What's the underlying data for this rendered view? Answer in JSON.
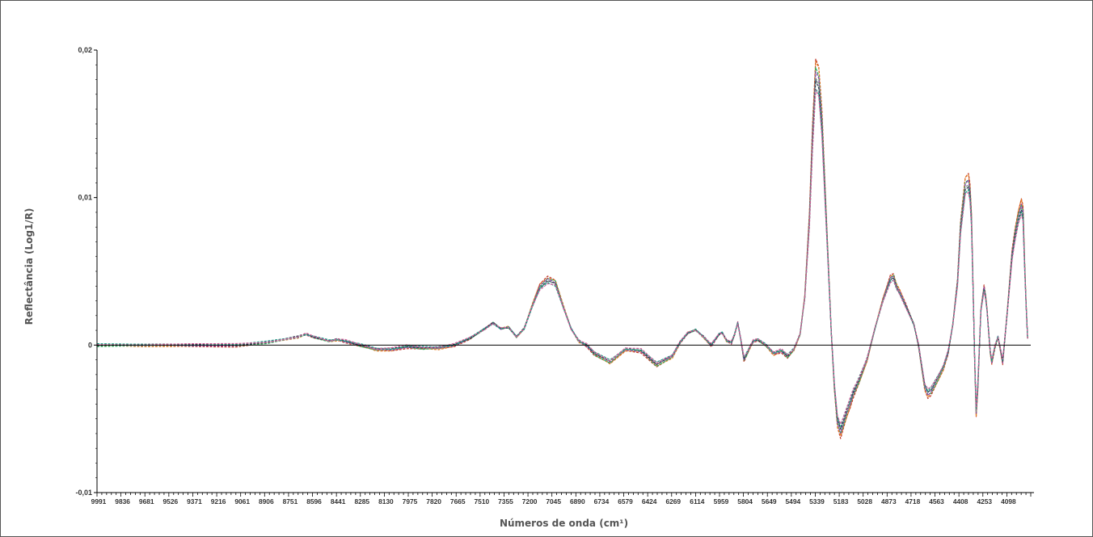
{
  "chart_data": {
    "type": "line",
    "title": "",
    "xlabel": "Números de onda (cm¹)",
    "ylabel": "Reflectância (Log1/R)",
    "x_ticks": [
      "9991",
      "9836",
      "9681",
      "9526",
      "9371",
      "9216",
      "9061",
      "8906",
      "8751",
      "8596",
      "8441",
      "8285",
      "8130",
      "7975",
      "7820",
      "7665",
      "7510",
      "7355",
      "7200",
      "7045",
      "6890",
      "6734",
      "6579",
      "6424",
      "6269",
      "6114",
      "5959",
      "5804",
      "5649",
      "5494",
      "5339",
      "5183",
      "5028",
      "4873",
      "4718",
      "4563",
      "4408",
      "4253",
      "4098"
    ],
    "y_ticks": [
      "0,02",
      "0,01",
      "0",
      "-0,01"
    ],
    "y_tick_values": [
      0.02,
      0.01,
      0,
      -0.01
    ],
    "xlim": [
      9991,
      4000
    ],
    "ylim": [
      -0.01,
      0.02
    ],
    "x_reversed": true,
    "grid": false,
    "zero_line": true,
    "n_spectra": 8,
    "series_colors": [
      "#c0392b",
      "#e67e22",
      "#27ae60",
      "#8e44ad",
      "#7f8c8d",
      "#2c3e50",
      "#16a085",
      "#d35f9a"
    ],
    "x": [
      9991,
      9700,
      9400,
      9100,
      8900,
      8700,
      8650,
      8600,
      8500,
      8450,
      8400,
      8300,
      8200,
      8100,
      8000,
      7900,
      7800,
      7700,
      7600,
      7500,
      7450,
      7400,
      7350,
      7300,
      7250,
      7200,
      7150,
      7100,
      7050,
      7000,
      6950,
      6900,
      6850,
      6800,
      6700,
      6600,
      6500,
      6400,
      6300,
      6250,
      6200,
      6150,
      6100,
      6050,
      6000,
      5980,
      5950,
      5920,
      5900,
      5880,
      5860,
      5840,
      5820,
      5800,
      5780,
      5750,
      5700,
      5650,
      5600,
      5560,
      5520,
      5480,
      5450,
      5420,
      5400,
      5380,
      5360,
      5340,
      5320,
      5300,
      5280,
      5260,
      5240,
      5220,
      5200,
      5180,
      5160,
      5140,
      5100,
      5050,
      5000,
      4950,
      4900,
      4880,
      4860,
      4840,
      4800,
      4750,
      4720,
      4700,
      4680,
      4660,
      4640,
      4600,
      4560,
      4530,
      4500,
      4470,
      4450,
      4420,
      4400,
      4390,
      4380,
      4370,
      4360,
      4350,
      4340,
      4320,
      4300,
      4290,
      4280,
      4270,
      4260,
      4250,
      4230,
      4210,
      4200,
      4180,
      4150,
      4120,
      4100,
      4080,
      4060,
      4050,
      4040,
      4030,
      4020
    ],
    "series": [
      {
        "values": [
          0,
          0,
          0,
          0,
          0.0002,
          0.0006,
          0.0008,
          0.0006,
          0.0003,
          0.0004,
          0.0003,
          0,
          -0.0003,
          -0.0003,
          -0.0001,
          -0.0002,
          -0.0002,
          0,
          0.0005,
          0.0012,
          0.0016,
          0.0012,
          0.0013,
          0.0006,
          0.0012,
          0.0028,
          0.0042,
          0.0047,
          0.0045,
          0.0028,
          0.0012,
          0.0003,
          0,
          -0.0006,
          -0.0012,
          -0.0003,
          -0.0004,
          -0.0014,
          -0.0008,
          0.0002,
          0.0009,
          0.0011,
          0.0006,
          0,
          0.0008,
          0.0009,
          0.0003,
          0.0002,
          0.0008,
          0.0016,
          0.0004,
          -0.001,
          -0.0006,
          -0.0001,
          0.0003,
          0.0004,
          0,
          -0.0006,
          -0.0004,
          -0.0008,
          -0.0003,
          0.0008,
          0.0035,
          0.009,
          0.015,
          0.0195,
          0.019,
          0.016,
          0.011,
          0.006,
          0.001,
          -0.003,
          -0.0055,
          -0.0062,
          -0.0055,
          -0.0048,
          -0.0042,
          -0.0035,
          -0.0025,
          -0.001,
          0.0012,
          0.0032,
          0.0048,
          0.0049,
          0.0042,
          0.0038,
          0.0028,
          0.0015,
          0,
          -0.0015,
          -0.003,
          -0.0035,
          -0.0033,
          -0.0025,
          -0.0016,
          -0.0005,
          0.0015,
          0.0045,
          0.0085,
          0.0115,
          0.0117,
          0.011,
          0.009,
          0.004,
          -0.001,
          -0.0048,
          -0.003,
          0.0025,
          0.0041,
          0.0035,
          0.0025,
          0.001,
          -0.0005,
          -0.0012,
          -0.0001,
          0.0006,
          0,
          -0.0012,
          0.0025,
          0.0065,
          0.008,
          0.0092,
          0.01,
          0.0095,
          0.006,
          0.003,
          0.0005
        ]
      }
    ]
  }
}
